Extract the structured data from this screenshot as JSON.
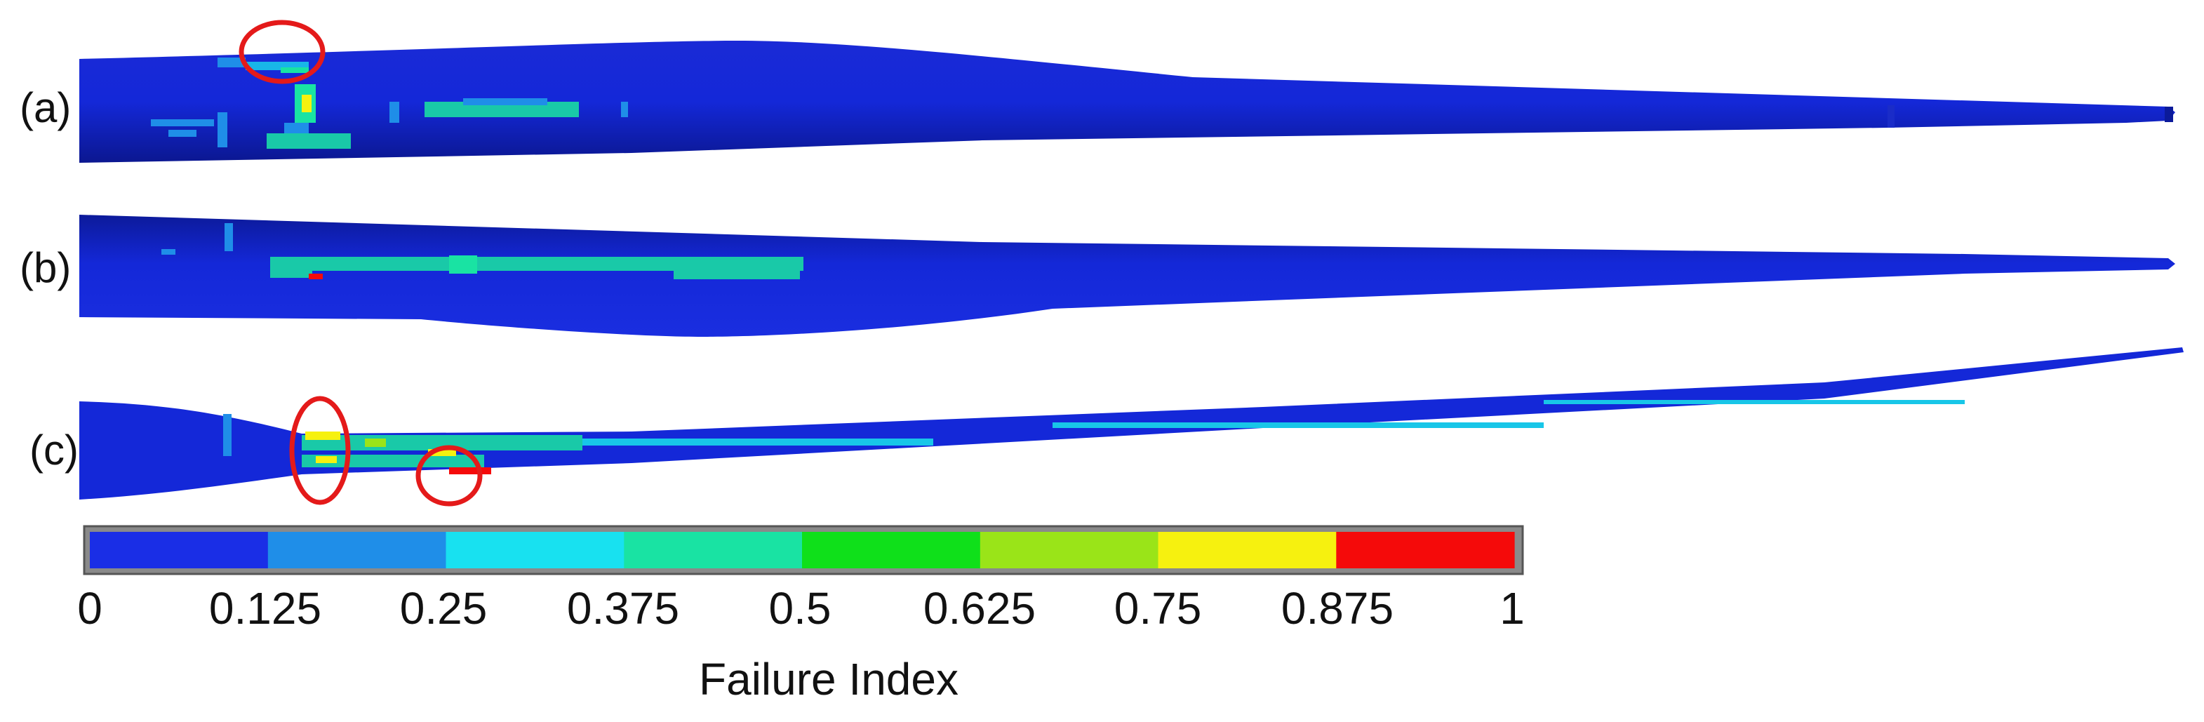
{
  "panels": [
    {
      "id": "a",
      "label": "(a)"
    },
    {
      "id": "b",
      "label": "(b)"
    },
    {
      "id": "c",
      "label": "(c)"
    }
  ],
  "colorbar": {
    "title": "Failure Index",
    "ticks": [
      "0",
      "0.125",
      "0.25",
      "0.375",
      "0.5",
      "0.625",
      "0.75",
      "0.875",
      "1"
    ],
    "colors": [
      "#1a2ee6",
      "#1f8ee8",
      "#18e1f0",
      "#19e3a3",
      "#0fe01a",
      "#9ae418",
      "#f6f10f",
      "#f50a0a"
    ]
  },
  "colors": {
    "blade_dark": "#0a1aa8",
    "blade_main": "#1224d0",
    "highlight_circle": "#e41a1a"
  }
}
